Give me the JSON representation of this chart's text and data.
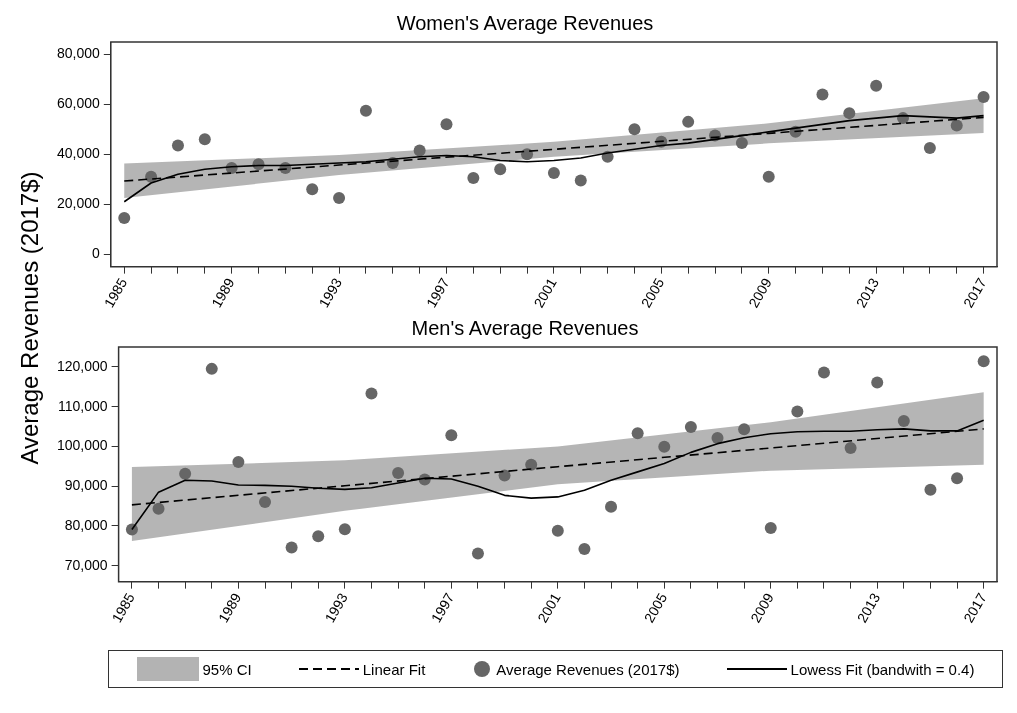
{
  "chart_data": [
    {
      "type": "scatter",
      "title": "Women's Average Revenues",
      "ylabel": "Average Revenues (2017$)",
      "x": [
        1985,
        1986,
        1987,
        1988,
        1989,
        1990,
        1991,
        1992,
        1993,
        1994,
        1995,
        1996,
        1997,
        1998,
        1999,
        2000,
        2001,
        2002,
        2003,
        2004,
        2005,
        2006,
        2007,
        2008,
        2009,
        2010,
        2011,
        2012,
        2013,
        2014,
        2015,
        2016,
        2017
      ],
      "xlim": [
        1984.5,
        2017.5
      ],
      "xticks": [
        1985,
        {
          "value": 1986,
          "label": null
        },
        {
          "value": 1987,
          "label": null
        },
        {
          "value": 1988,
          "label": null
        },
        1989,
        {
          "value": 1990,
          "label": null
        },
        {
          "value": 1991,
          "label": null
        },
        {
          "value": 1992,
          "label": null
        },
        1993,
        {
          "value": 1994,
          "label": null
        },
        {
          "value": 1995,
          "label": null
        },
        {
          "value": 1996,
          "label": null
        },
        1997,
        {
          "value": 1998,
          "label": null
        },
        {
          "value": 1999,
          "label": null
        },
        {
          "value": 2000,
          "label": null
        },
        2001,
        {
          "value": 2002,
          "label": null
        },
        {
          "value": 2003,
          "label": null
        },
        {
          "value": 2004,
          "label": null
        },
        2005,
        {
          "value": 2006,
          "label": null
        },
        {
          "value": 2007,
          "label": null
        },
        {
          "value": 2008,
          "label": null
        },
        2009,
        {
          "value": 2010,
          "label": null
        },
        {
          "value": 2011,
          "label": null
        },
        {
          "value": 2012,
          "label": null
        },
        2013,
        {
          "value": 2014,
          "label": null
        },
        {
          "value": 2015,
          "label": null
        },
        {
          "value": 2016,
          "label": null
        },
        2017
      ],
      "ylim": [
        -5000,
        85000
      ],
      "yticks": [
        {
          "value": 0,
          "label": "0"
        },
        {
          "value": 20000,
          "label": "20,000"
        },
        {
          "value": 40000,
          "label": "40,000"
        },
        {
          "value": 60000,
          "label": "60,000"
        },
        {
          "value": 80000,
          "label": "80,000"
        }
      ],
      "series": [
        {
          "type": "line",
          "color": "#000000",
          "line_style": "dashed",
          "x": [
            1985,
            1993,
            2001,
            2009,
            2017
          ],
          "values": [
            29300,
            35700,
            42000,
            48400,
            54800
          ],
          "lower": [
            22500,
            31700,
            39000,
            44400,
            48500
          ],
          "upper": [
            36300,
            39700,
            45000,
            52400,
            62500
          ]
        },
        {
          "type": "scatter",
          "color": "#666666",
          "marker": "circle",
          "values": [
            14500,
            31000,
            43500,
            46000,
            34500,
            36000,
            34500,
            26000,
            22500,
            57500,
            36500,
            41500,
            52000,
            30500,
            34000,
            40000,
            32500,
            29500,
            39000,
            50000,
            45000,
            53000,
            47500,
            44500,
            31000,
            49000,
            64000,
            56500,
            67500,
            54500,
            42500,
            51500,
            63000
          ]
        },
        {
          "type": "line",
          "color": "#000000",
          "line_style": "solid",
          "values": [
            21000,
            28500,
            32000,
            34000,
            35000,
            35500,
            35500,
            36000,
            36500,
            37000,
            38000,
            39000,
            39500,
            39000,
            37500,
            37000,
            37500,
            38500,
            40500,
            42000,
            43500,
            44500,
            46000,
            47500,
            49000,
            50500,
            52000,
            53500,
            54500,
            55500,
            55000,
            54500,
            55500
          ]
        }
      ]
    },
    {
      "type": "scatter",
      "title": "Men's Average Revenues",
      "legend": "bottom",
      "annotations": [
        "95% CI"
      ],
      "x": [
        1985,
        1986,
        1987,
        1988,
        1989,
        1990,
        1991,
        1992,
        1993,
        1994,
        1995,
        1996,
        1997,
        1998,
        1999,
        2000,
        2001,
        2002,
        2003,
        2004,
        2005,
        2006,
        2007,
        2008,
        2009,
        2010,
        2011,
        2012,
        2013,
        2014,
        2015,
        2016,
        2017
      ],
      "xlim": [
        1984.5,
        2017.5
      ],
      "xticks": [
        1985,
        {
          "value": 1986,
          "label": null
        },
        {
          "value": 1987,
          "label": null
        },
        {
          "value": 1988,
          "label": null
        },
        1989,
        {
          "value": 1990,
          "label": null
        },
        {
          "value": 1991,
          "label": null
        },
        {
          "value": 1992,
          "label": null
        },
        1993,
        {
          "value": 1994,
          "label": null
        },
        {
          "value": 1995,
          "label": null
        },
        {
          "value": 1996,
          "label": null
        },
        1997,
        {
          "value": 1998,
          "label": null
        },
        {
          "value": 1999,
          "label": null
        },
        {
          "value": 2000,
          "label": null
        },
        2001,
        {
          "value": 2002,
          "label": null
        },
        {
          "value": 2003,
          "label": null
        },
        {
          "value": 2004,
          "label": null
        },
        2005,
        {
          "value": 2006,
          "label": null
        },
        {
          "value": 2007,
          "label": null
        },
        {
          "value": 2008,
          "label": null
        },
        2009,
        {
          "value": 2010,
          "label": null
        },
        {
          "value": 2011,
          "label": null
        },
        {
          "value": 2012,
          "label": null
        },
        2013,
        {
          "value": 2014,
          "label": null
        },
        {
          "value": 2015,
          "label": null
        },
        {
          "value": 2016,
          "label": null
        },
        2017
      ],
      "ylim": [
        66000,
        125000
      ],
      "yticks": [
        {
          "value": 70000,
          "label": "70,000"
        },
        {
          "value": 80000,
          "label": "80,000"
        },
        {
          "value": 90000,
          "label": "90,000"
        },
        {
          "value": 100000,
          "label": "100,000"
        },
        {
          "value": 110000,
          "label": "110,000"
        },
        {
          "value": 120000,
          "label": "120,000"
        }
      ],
      "series": [
        {
          "name": "Linear Fit",
          "type": "line",
          "color": "#000000",
          "line_style": "dashed",
          "x": [
            1985,
            1993,
            2001,
            2009,
            2017
          ],
          "values": [
            85300,
            90100,
            94900,
            99600,
            104400
          ],
          "lower": [
            76200,
            83800,
            90500,
            93900,
            95400
          ],
          "upper": [
            94800,
            96500,
            100000,
            106100,
            113600
          ]
        },
        {
          "name": "Average Revenues (2017$)",
          "type": "scatter",
          "color": "#666666",
          "marker": "circle",
          "values": [
            79100,
            84300,
            93100,
            119500,
            96100,
            86000,
            74600,
            77400,
            79200,
            113300,
            93300,
            91700,
            102800,
            73100,
            92700,
            95400,
            78800,
            74200,
            84800,
            103300,
            99900,
            104900,
            102100,
            104300,
            79500,
            108800,
            118600,
            99600,
            116100,
            106400,
            89100,
            92000,
            121400
          ]
        },
        {
          "name": "Lowess Fit (bandwith = 0.4)",
          "type": "line",
          "color": "#000000",
          "line_style": "solid",
          "values": [
            79100,
            88500,
            91500,
            91300,
            90300,
            90200,
            90000,
            89500,
            89200,
            89600,
            90800,
            92000,
            91800,
            90000,
            87700,
            87000,
            87300,
            89000,
            91500,
            93600,
            95700,
            98500,
            100700,
            102200,
            103200,
            103700,
            103800,
            103800,
            104200,
            104400,
            103900,
            103900,
            106600
          ]
        }
      ]
    }
  ]
}
